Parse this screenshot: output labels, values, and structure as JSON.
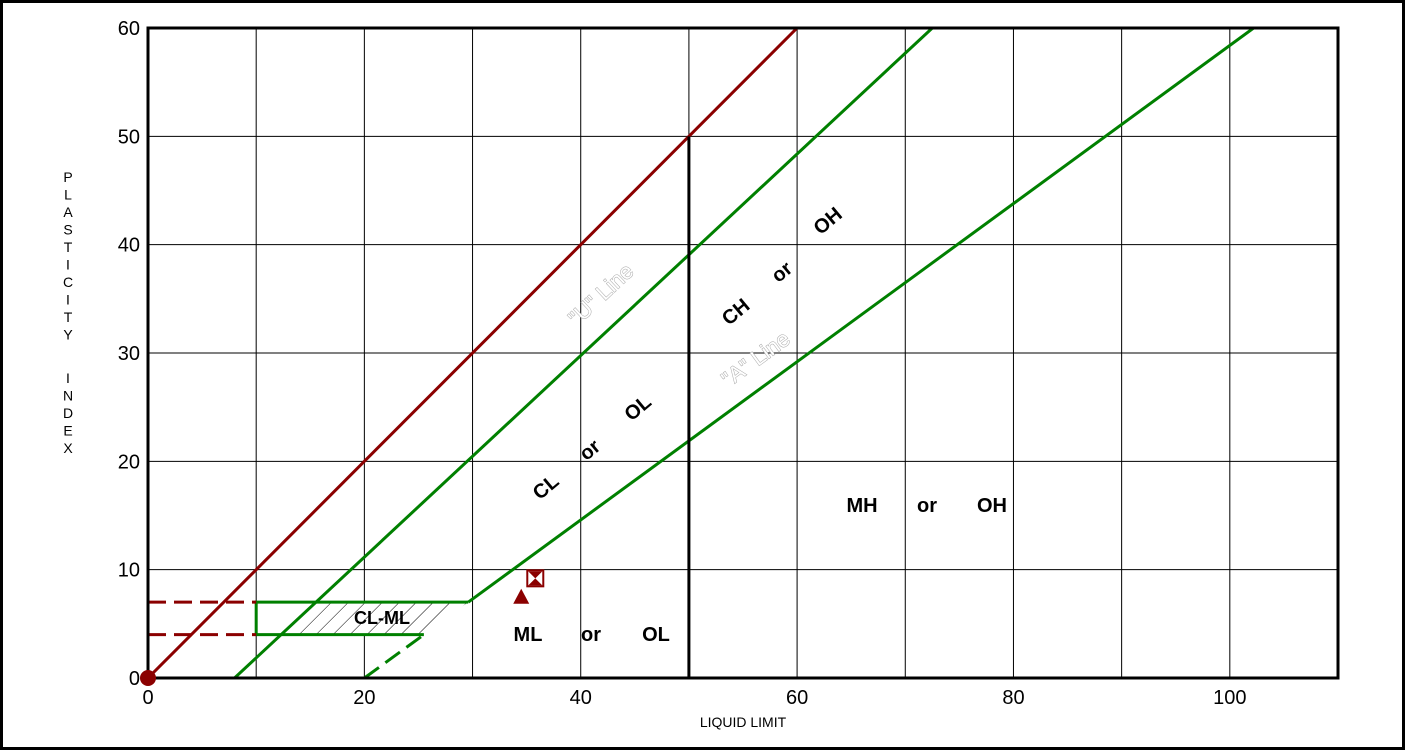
{
  "chart_data": {
    "type": "scatter",
    "title": "",
    "xlabel": "LIQUID LIMIT",
    "ylabel": "PLASTICITY INDEX",
    "xlim": [
      0,
      110
    ],
    "ylim": [
      0,
      60
    ],
    "x_ticks": [
      0,
      20,
      40,
      60,
      80,
      100
    ],
    "y_ticks": [
      0,
      10,
      20,
      30,
      40,
      50,
      60
    ],
    "grid": true,
    "lines": [
      {
        "name": "\"U\" Line",
        "color": "#008000",
        "points": [
          [
            8,
            0
          ],
          [
            72.5,
            60
          ]
        ]
      },
      {
        "name": "\"A\" Line",
        "color": "#008000",
        "points": [
          [
            29.6,
            7
          ],
          [
            102.2,
            60
          ]
        ]
      },
      {
        "name": "PI = LL",
        "color": "#8b0000",
        "points": [
          [
            0,
            0
          ],
          [
            60,
            60
          ]
        ]
      },
      {
        "name": "LL = 50",
        "color": "#000000",
        "points": [
          [
            50,
            0
          ],
          [
            50,
            50
          ]
        ]
      }
    ],
    "cl_ml_zone": {
      "x": [
        10,
        29.6
      ],
      "y": [
        4,
        7
      ]
    },
    "dashed_lines": [
      {
        "color": "#8b0000",
        "points": [
          [
            0,
            7
          ],
          [
            10,
            7
          ]
        ]
      },
      {
        "color": "#8b0000",
        "points": [
          [
            0,
            4
          ],
          [
            10,
            4
          ]
        ]
      },
      {
        "color": "#008000",
        "points": [
          [
            20,
            0
          ],
          [
            25.5,
            4
          ]
        ]
      }
    ],
    "points": [
      {
        "marker": "circle",
        "color": "#8b0000",
        "x": 0,
        "y": 0
      },
      {
        "marker": "triangle",
        "color": "#8b0000",
        "x": 34.5,
        "y": 7.5
      },
      {
        "marker": "hourglass-square",
        "color": "#8b0000",
        "x": 35.8,
        "y": 9.2
      }
    ],
    "zone_labels": {
      "cl_ml": "CL-ML",
      "cl": "CL",
      "cl_or": "or",
      "cl_ol": "OL",
      "ch": "CH",
      "ch_or": "or",
      "ch_oh": "OH",
      "mh": "MH",
      "mh_or": "or",
      "mh_oh": "OH",
      "ml": "ML",
      "ml_or": "or",
      "ml_ol": "OL"
    },
    "line_labels": {
      "u": "\"U\" Line",
      "a": "\"A\" Line"
    }
  }
}
